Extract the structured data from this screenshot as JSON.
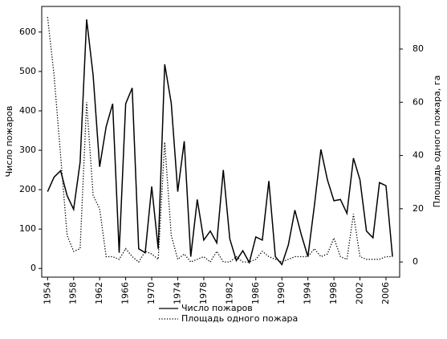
{
  "chart_data": {
    "type": "line",
    "ylabel": "Число пожаров",
    "y2label": "Площадь одного пожара, га",
    "x": [
      1954,
      1955,
      1956,
      1957,
      1958,
      1959,
      1960,
      1961,
      1962,
      1963,
      1964,
      1965,
      1966,
      1967,
      1968,
      1969,
      1970,
      1971,
      1972,
      1973,
      1974,
      1975,
      1976,
      1977,
      1978,
      1979,
      1980,
      1981,
      1982,
      1983,
      1984,
      1985,
      1986,
      1987,
      1988,
      1989,
      1990,
      1991,
      1992,
      1993,
      1994,
      1995,
      1996,
      1997,
      1998,
      1999,
      2000,
      2001,
      2002,
      2003,
      2004,
      2005,
      2006,
      2007
    ],
    "series": [
      {
        "name": "Число пожаров",
        "color": "#000000",
        "dash": "solid",
        "values": [
          195,
          232,
          248,
          185,
          150,
          270,
          632,
          490,
          258,
          360,
          418,
          40,
          418,
          458,
          50,
          40,
          208,
          50,
          518,
          420,
          195,
          323,
          30,
          175,
          72,
          95,
          65,
          250,
          75,
          20,
          45,
          15,
          80,
          72,
          222,
          30,
          10,
          60,
          148,
          85,
          30,
          160,
          302,
          225,
          172,
          175,
          140,
          280,
          225,
          95,
          78,
          218,
          210,
          30
        ]
      },
      {
        "name": "Площадь одного пожара",
        "color": "#000000",
        "dash": "dotted",
        "axis": "y2",
        "values": [
          92,
          70,
          40,
          10,
          4,
          5,
          60,
          25,
          20,
          2,
          2,
          1,
          5,
          2,
          0,
          4,
          3,
          1,
          45,
          10,
          1,
          3,
          0,
          1,
          2,
          0,
          4,
          0,
          0,
          2,
          0,
          0,
          1,
          4,
          2,
          1,
          0,
          1,
          2,
          2,
          2,
          5,
          2,
          3,
          9,
          2,
          1,
          18,
          2,
          1,
          1,
          1,
          2,
          2
        ]
      }
    ],
    "xlim": [
      1953.1,
      2008.1
    ],
    "xticks": [
      1954,
      1958,
      1962,
      1966,
      1970,
      1974,
      1978,
      1982,
      1986,
      1990,
      1994,
      1998,
      2002,
      2006
    ],
    "ylim": [
      -22,
      665
    ],
    "yticks": [
      0,
      100,
      200,
      300,
      400,
      500,
      600
    ],
    "y2lim": [
      -5.7,
      96
    ],
    "y2ticks": [
      0,
      20,
      40,
      60,
      80
    ],
    "legend": "bottom"
  }
}
